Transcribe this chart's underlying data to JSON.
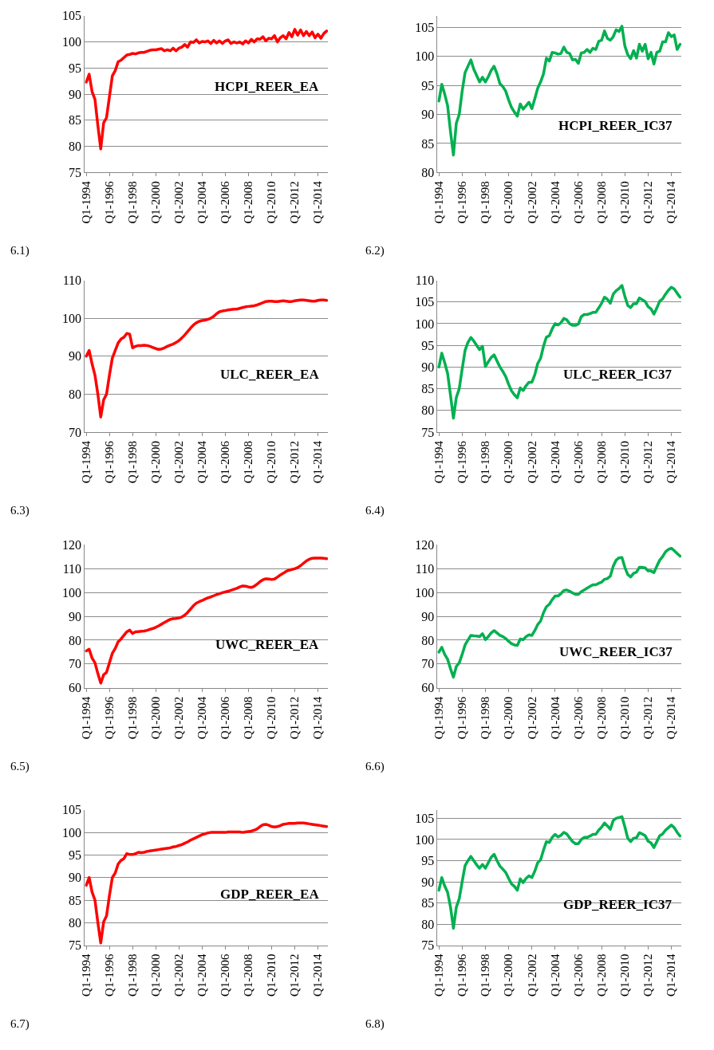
{
  "chart_data": [
    {
      "type": "line",
      "annotations": [
        "6.1)"
      ],
      "ylim": [
        75,
        105
      ],
      "yticks": [
        75,
        80,
        85,
        90,
        95,
        100,
        105
      ],
      "grid": "y",
      "legend": false,
      "marker": "none",
      "line_style": "solid",
      "categories": [
        "Q1-1994",
        null,
        null,
        null,
        null,
        null,
        null,
        null,
        "Q1-1996",
        null,
        null,
        null,
        null,
        null,
        null,
        null,
        "Q1-1998",
        null,
        null,
        null,
        null,
        null,
        null,
        null,
        "Q1-2000",
        null,
        null,
        null,
        null,
        null,
        null,
        null,
        "Q1-2002",
        null,
        null,
        null,
        null,
        null,
        null,
        null,
        "Q1-2004",
        null,
        null,
        null,
        null,
        null,
        null,
        null,
        "Q1-2006",
        null,
        null,
        null,
        null,
        null,
        null,
        null,
        "Q1-2008",
        null,
        null,
        null,
        null,
        null,
        null,
        null,
        "Q1-2010",
        null,
        null,
        null,
        null,
        null,
        null,
        null,
        "Q1-2012",
        null,
        null,
        null,
        null,
        null,
        null,
        null,
        "Q1-2014",
        null,
        null,
        null
      ],
      "series": [
        {
          "name": "HCPI_REER_EA",
          "color": "#ff0000",
          "values": [
            92.3,
            93.8,
            90.5,
            89.0,
            84.0,
            79.5,
            84.5,
            85.5,
            89.5,
            93.5,
            94.5,
            96.2,
            96.5,
            97.0,
            97.5,
            97.6,
            97.8,
            97.7,
            97.9,
            98.0,
            98.0,
            98.2,
            98.4,
            98.5,
            98.5,
            98.6,
            98.7,
            98.3,
            98.5,
            98.3,
            98.8,
            98.3,
            98.8,
            99.0,
            99.5,
            99.0,
            100.0,
            99.9,
            100.4,
            99.8,
            100.1,
            100.0,
            100.2,
            99.7,
            100.3,
            99.8,
            100.2,
            99.7,
            100.2,
            100.4,
            99.7,
            100.0,
            99.8,
            100.0,
            99.6,
            100.2,
            99.8,
            100.5,
            100.0,
            100.6,
            100.5,
            101.0,
            100.2,
            100.7,
            100.6,
            101.2,
            100.0,
            100.8,
            101.2,
            100.6,
            101.8,
            101.0,
            102.4,
            101.3,
            102.3,
            101.2,
            102.0,
            101.2,
            101.9,
            100.8,
            101.5,
            100.7,
            101.6,
            102.1
          ]
        }
      ]
    },
    {
      "type": "line",
      "annotations": [
        "6.2)"
      ],
      "ylim": [
        80,
        107
      ],
      "yticks": [
        80,
        85,
        90,
        95,
        100,
        105
      ],
      "grid": "y",
      "legend": false,
      "marker": "none",
      "line_style": "solid",
      "categories": [
        "Q1-1994",
        null,
        null,
        null,
        null,
        null,
        null,
        null,
        "Q1-1996",
        null,
        null,
        null,
        null,
        null,
        null,
        null,
        "Q1-1998",
        null,
        null,
        null,
        null,
        null,
        null,
        null,
        "Q1-2000",
        null,
        null,
        null,
        null,
        null,
        null,
        null,
        "Q1-2002",
        null,
        null,
        null,
        null,
        null,
        null,
        null,
        "Q1-2004",
        null,
        null,
        null,
        null,
        null,
        null,
        null,
        "Q1-2006",
        null,
        null,
        null,
        null,
        null,
        null,
        null,
        "Q1-2008",
        null,
        null,
        null,
        null,
        null,
        null,
        null,
        "Q1-2010",
        null,
        null,
        null,
        null,
        null,
        null,
        null,
        "Q1-2012",
        null,
        null,
        null,
        null,
        null,
        null,
        null,
        "Q1-2014",
        null,
        null,
        null
      ],
      "series": [
        {
          "name": "HCPI_REER_IC37",
          "color": "#00b050",
          "values": [
            92.3,
            95.2,
            93.5,
            91.5,
            87.0,
            83.0,
            88.5,
            90.0,
            94.0,
            97.2,
            98.3,
            99.4,
            97.8,
            96.7,
            95.6,
            96.4,
            95.6,
            96.5,
            97.6,
            98.3,
            97.0,
            95.3,
            94.8,
            94.0,
            92.5,
            91.2,
            90.4,
            89.7,
            91.8,
            90.9,
            91.5,
            92.1,
            91.0,
            92.7,
            94.5,
            95.6,
            97.0,
            99.7,
            99.2,
            100.7,
            100.6,
            100.4,
            100.5,
            101.6,
            100.7,
            100.5,
            99.4,
            99.5,
            98.8,
            100.6,
            100.7,
            101.2,
            100.7,
            101.4,
            101.2,
            102.6,
            102.8,
            104.4,
            103.1,
            102.8,
            103.4,
            104.6,
            104.3,
            105.2,
            101.8,
            100.3,
            99.6,
            101.0,
            99.7,
            102.1,
            100.9,
            102.1,
            99.6,
            100.7,
            98.7,
            100.7,
            100.9,
            102.5,
            102.5,
            104.1,
            103.4,
            103.7,
            101.2,
            102.1
          ]
        }
      ]
    },
    {
      "type": "line",
      "annotations": [
        "6.3)"
      ],
      "ylim": [
        70,
        110
      ],
      "yticks": [
        70,
        80,
        90,
        100,
        110
      ],
      "grid": "y",
      "legend": false,
      "marker": "none",
      "line_style": "solid",
      "categories": [
        "Q1-1994",
        null,
        null,
        null,
        null,
        null,
        null,
        null,
        "Q1-1996",
        null,
        null,
        null,
        null,
        null,
        null,
        null,
        "Q1-1998",
        null,
        null,
        null,
        null,
        null,
        null,
        null,
        "Q1-2000",
        null,
        null,
        null,
        null,
        null,
        null,
        null,
        "Q1-2002",
        null,
        null,
        null,
        null,
        null,
        null,
        null,
        "Q1-2004",
        null,
        null,
        null,
        null,
        null,
        null,
        null,
        "Q1-2006",
        null,
        null,
        null,
        null,
        null,
        null,
        null,
        "Q1-2008",
        null,
        null,
        null,
        null,
        null,
        null,
        null,
        "Q1-2010",
        null,
        null,
        null,
        null,
        null,
        null,
        null,
        "Q1-2012",
        null,
        null,
        null,
        null,
        null,
        null,
        null,
        "Q1-2014",
        null,
        null,
        null
      ],
      "series": [
        {
          "name": "ULC_REER_EA",
          "color": "#ff0000",
          "values": [
            90.0,
            91.5,
            88.0,
            85.0,
            80.0,
            74.0,
            78.5,
            80.0,
            85.0,
            89.5,
            91.5,
            93.5,
            94.5,
            95.0,
            96.0,
            95.8,
            92.2,
            92.6,
            92.8,
            92.8,
            92.9,
            92.8,
            92.6,
            92.3,
            92.0,
            91.8,
            91.9,
            92.2,
            92.6,
            92.9,
            93.2,
            93.6,
            94.1,
            94.8,
            95.6,
            96.5,
            97.4,
            98.2,
            98.8,
            99.2,
            99.4,
            99.5,
            99.7,
            100.0,
            100.5,
            101.2,
            101.7,
            101.9,
            102.0,
            102.2,
            102.3,
            102.4,
            102.4,
            102.6,
            102.8,
            103.0,
            103.1,
            103.2,
            103.3,
            103.5,
            103.8,
            104.1,
            104.4,
            104.5,
            104.5,
            104.4,
            104.4,
            104.5,
            104.6,
            104.5,
            104.4,
            104.4,
            104.6,
            104.7,
            104.8,
            104.8,
            104.7,
            104.6,
            104.5,
            104.5,
            104.7,
            104.8,
            104.8,
            104.7
          ]
        }
      ]
    },
    {
      "type": "line",
      "annotations": [
        "6.4)"
      ],
      "ylim": [
        75,
        110
      ],
      "yticks": [
        75,
        80,
        85,
        90,
        95,
        100,
        105,
        110
      ],
      "grid": "y",
      "legend": false,
      "marker": "none",
      "line_style": "solid",
      "categories": [
        "Q1-1994",
        null,
        null,
        null,
        null,
        null,
        null,
        null,
        "Q1-1996",
        null,
        null,
        null,
        null,
        null,
        null,
        null,
        "Q1-1998",
        null,
        null,
        null,
        null,
        null,
        null,
        null,
        "Q1-2000",
        null,
        null,
        null,
        null,
        null,
        null,
        null,
        "Q1-2002",
        null,
        null,
        null,
        null,
        null,
        null,
        null,
        "Q1-2004",
        null,
        null,
        null,
        null,
        null,
        null,
        null,
        "Q1-2006",
        null,
        null,
        null,
        null,
        null,
        null,
        null,
        "Q1-2008",
        null,
        null,
        null,
        null,
        null,
        null,
        null,
        "Q1-2010",
        null,
        null,
        null,
        null,
        null,
        null,
        null,
        "Q1-2012",
        null,
        null,
        null,
        null,
        null,
        null,
        null,
        "Q1-2014",
        null,
        null,
        null
      ],
      "series": [
        {
          "name": "ULC_REER_IC37",
          "color": "#00b050",
          "values": [
            90.0,
            93.2,
            91.0,
            88.5,
            83.5,
            78.2,
            83.0,
            85.0,
            89.5,
            93.8,
            95.7,
            96.8,
            96.0,
            95.0,
            94.0,
            94.8,
            90.1,
            91.2,
            92.2,
            92.8,
            91.4,
            90.0,
            89.0,
            87.8,
            86.0,
            84.5,
            83.6,
            82.9,
            85.2,
            84.6,
            85.7,
            86.5,
            86.5,
            88.2,
            90.8,
            92.0,
            94.8,
            96.9,
            97.2,
            98.8,
            100.0,
            99.7,
            100.2,
            101.2,
            100.9,
            100.0,
            99.6,
            99.6,
            99.9,
            101.6,
            102.1,
            102.1,
            102.3,
            102.6,
            102.6,
            103.6,
            104.7,
            106.1,
            105.6,
            104.7,
            106.8,
            107.6,
            108.1,
            108.8,
            106.3,
            104.2,
            103.7,
            104.6,
            104.6,
            105.9,
            105.5,
            105.1,
            103.9,
            103.4,
            102.2,
            103.6,
            105.2,
            105.7,
            106.8,
            107.7,
            108.4,
            108.0,
            107.0,
            106.1
          ]
        }
      ]
    },
    {
      "type": "line",
      "annotations": [
        "6.5)"
      ],
      "ylim": [
        60,
        120
      ],
      "yticks": [
        60,
        70,
        80,
        90,
        100,
        110,
        120
      ],
      "grid": "y",
      "legend": false,
      "marker": "none",
      "line_style": "solid",
      "categories": [
        "Q1-1994",
        null,
        null,
        null,
        null,
        null,
        null,
        null,
        "Q1-1996",
        null,
        null,
        null,
        null,
        null,
        null,
        null,
        "Q1-1998",
        null,
        null,
        null,
        null,
        null,
        null,
        null,
        "Q1-2000",
        null,
        null,
        null,
        null,
        null,
        null,
        null,
        "Q1-2002",
        null,
        null,
        null,
        null,
        null,
        null,
        null,
        "Q1-2004",
        null,
        null,
        null,
        null,
        null,
        null,
        null,
        "Q1-2006",
        null,
        null,
        null,
        null,
        null,
        null,
        null,
        "Q1-2008",
        null,
        null,
        null,
        null,
        null,
        null,
        null,
        "Q1-2010",
        null,
        null,
        null,
        null,
        null,
        null,
        null,
        "Q1-2012",
        null,
        null,
        null,
        null,
        null,
        null,
        null,
        "Q1-2014",
        null,
        null,
        null
      ],
      "series": [
        {
          "name": "UWC_REER_EA",
          "color": "#ff0000",
          "values": [
            75.5,
            76.2,
            72.5,
            70.5,
            66.0,
            62.0,
            65.5,
            66.5,
            70.5,
            74.5,
            76.5,
            79.3,
            80.5,
            82.0,
            83.5,
            84.2,
            82.8,
            83.5,
            83.6,
            83.7,
            83.8,
            84.1,
            84.5,
            84.9,
            85.4,
            86.0,
            86.7,
            87.4,
            88.1,
            88.7,
            89.0,
            89.1,
            89.3,
            89.7,
            90.5,
            91.6,
            93.0,
            94.4,
            95.5,
            96.1,
            96.6,
            97.2,
            97.7,
            98.1,
            98.6,
            99.1,
            99.5,
            99.9,
            100.2,
            100.5,
            100.9,
            101.3,
            101.7,
            102.3,
            102.7,
            102.6,
            102.3,
            102.1,
            102.6,
            103.5,
            104.5,
            105.3,
            105.7,
            105.6,
            105.4,
            105.6,
            106.4,
            107.3,
            108.0,
            108.8,
            109.3,
            109.6,
            109.9,
            110.4,
            111.2,
            112.2,
            113.2,
            113.9,
            114.3,
            114.4,
            114.4,
            114.4,
            114.3,
            114.1
          ]
        }
      ]
    },
    {
      "type": "line",
      "annotations": [
        "6.6)"
      ],
      "ylim": [
        60,
        120
      ],
      "yticks": [
        60,
        70,
        80,
        90,
        100,
        110,
        120
      ],
      "grid": "y",
      "legend": false,
      "marker": "none",
      "line_style": "solid",
      "categories": [
        "Q1-1994",
        null,
        null,
        null,
        null,
        null,
        null,
        null,
        "Q1-1996",
        null,
        null,
        null,
        null,
        null,
        null,
        null,
        "Q1-1998",
        null,
        null,
        null,
        null,
        null,
        null,
        null,
        "Q1-2000",
        null,
        null,
        null,
        null,
        null,
        null,
        null,
        "Q1-2002",
        null,
        null,
        null,
        null,
        null,
        null,
        null,
        "Q1-2004",
        null,
        null,
        null,
        null,
        null,
        null,
        null,
        "Q1-2006",
        null,
        null,
        null,
        null,
        null,
        null,
        null,
        "Q1-2008",
        null,
        null,
        null,
        null,
        null,
        null,
        null,
        "Q1-2010",
        null,
        null,
        null,
        null,
        null,
        null,
        null,
        "Q1-2012",
        null,
        null,
        null,
        null,
        null,
        null,
        null,
        "Q1-2014",
        null,
        null,
        null
      ],
      "series": [
        {
          "name": "UWC_REER_IC37",
          "color": "#00b050",
          "values": [
            75.0,
            77.0,
            74.0,
            72.0,
            68.0,
            64.5,
            69.0,
            70.5,
            74.0,
            78.0,
            80.0,
            82.0,
            81.8,
            81.7,
            81.5,
            82.7,
            80.2,
            81.5,
            83.0,
            84.0,
            83.0,
            82.0,
            81.5,
            80.7,
            79.5,
            78.5,
            78.0,
            77.8,
            80.5,
            80.2,
            81.5,
            82.2,
            82.0,
            84.0,
            86.5,
            88.0,
            91.5,
            94.0,
            95.0,
            97.0,
            98.5,
            98.5,
            99.5,
            100.8,
            101.0,
            100.5,
            99.8,
            99.2,
            99.2,
            100.3,
            101.0,
            101.8,
            102.5,
            103.2,
            103.2,
            103.8,
            104.3,
            105.5,
            105.8,
            106.8,
            111.0,
            113.5,
            114.5,
            114.6,
            110.5,
            107.5,
            106.5,
            108.0,
            108.5,
            110.5,
            110.5,
            110.3,
            109.0,
            109.0,
            108.3,
            111.0,
            113.5,
            115.0,
            117.0,
            118.0,
            118.5,
            117.5,
            116.3,
            115.2
          ]
        }
      ]
    },
    {
      "type": "line",
      "annotations": [
        "6.7)"
      ],
      "ylim": [
        75,
        105
      ],
      "yticks": [
        75,
        80,
        85,
        90,
        95,
        100,
        105
      ],
      "grid": "y",
      "legend": false,
      "marker": "none",
      "line_style": "solid",
      "categories": [
        "Q1-1994",
        null,
        null,
        null,
        null,
        null,
        null,
        null,
        "Q1-1996",
        null,
        null,
        null,
        null,
        null,
        null,
        null,
        "Q1-1998",
        null,
        null,
        null,
        null,
        null,
        null,
        null,
        "Q1-2000",
        null,
        null,
        null,
        null,
        null,
        null,
        null,
        "Q1-2002",
        null,
        null,
        null,
        null,
        null,
        null,
        null,
        "Q1-2004",
        null,
        null,
        null,
        null,
        null,
        null,
        null,
        "Q1-2006",
        null,
        null,
        null,
        null,
        null,
        null,
        null,
        "Q1-2008",
        null,
        null,
        null,
        null,
        null,
        null,
        null,
        "Q1-2010",
        null,
        null,
        null,
        null,
        null,
        null,
        null,
        "Q1-2012",
        null,
        null,
        null,
        null,
        null,
        null,
        null,
        "Q1-2014",
        null,
        null,
        null
      ],
      "series": [
        {
          "name": "GDP_REER_EA",
          "color": "#ff0000",
          "values": [
            88.3,
            90.0,
            86.8,
            85.0,
            80.0,
            75.5,
            80.2,
            81.5,
            86.0,
            90.0,
            91.0,
            93.0,
            93.8,
            94.2,
            95.3,
            95.1,
            95.1,
            95.3,
            95.6,
            95.5,
            95.6,
            95.8,
            95.9,
            96.0,
            96.1,
            96.2,
            96.3,
            96.4,
            96.5,
            96.6,
            96.8,
            96.9,
            97.1,
            97.3,
            97.6,
            97.9,
            98.3,
            98.6,
            98.9,
            99.2,
            99.5,
            99.7,
            99.9,
            100.0,
            100.0,
            100.0,
            100.0,
            100.0,
            100.0,
            100.1,
            100.1,
            100.1,
            100.1,
            100.1,
            100.0,
            100.1,
            100.2,
            100.3,
            100.5,
            100.8,
            101.3,
            101.7,
            101.8,
            101.6,
            101.3,
            101.2,
            101.3,
            101.5,
            101.8,
            101.9,
            102.0,
            102.0,
            102.0,
            102.1,
            102.1,
            102.1,
            102.0,
            101.9,
            101.8,
            101.7,
            101.6,
            101.5,
            101.4,
            101.3
          ]
        }
      ]
    },
    {
      "type": "line",
      "annotations": [
        "6.8)"
      ],
      "ylim": [
        75,
        107
      ],
      "yticks": [
        75,
        80,
        85,
        90,
        95,
        100,
        105
      ],
      "grid": "y",
      "legend": false,
      "marker": "none",
      "line_style": "solid",
      "categories": [
        "Q1-1994",
        null,
        null,
        null,
        null,
        null,
        null,
        null,
        "Q1-1996",
        null,
        null,
        null,
        null,
        null,
        null,
        null,
        "Q1-1998",
        null,
        null,
        null,
        null,
        null,
        null,
        null,
        "Q1-2000",
        null,
        null,
        null,
        null,
        null,
        null,
        null,
        "Q1-2002",
        null,
        null,
        null,
        null,
        null,
        null,
        null,
        "Q1-2004",
        null,
        null,
        null,
        null,
        null,
        null,
        null,
        "Q1-2006",
        null,
        null,
        null,
        null,
        null,
        null,
        null,
        "Q1-2008",
        null,
        null,
        null,
        null,
        null,
        null,
        null,
        "Q1-2010",
        null,
        null,
        null,
        null,
        null,
        null,
        null,
        "Q1-2012",
        null,
        null,
        null,
        null,
        null,
        null,
        null,
        "Q1-2014",
        null,
        null,
        null
      ],
      "series": [
        {
          "name": "GDP_REER_IC37",
          "color": "#00b050",
          "values": [
            88.0,
            91.0,
            89.0,
            87.5,
            84.0,
            79.0,
            84.0,
            86.0,
            90.0,
            93.8,
            95.0,
            96.0,
            95.0,
            94.0,
            93.2,
            94.1,
            93.2,
            94.5,
            95.8,
            96.5,
            95.0,
            93.7,
            93.0,
            92.2,
            90.8,
            89.5,
            88.9,
            88.0,
            90.7,
            89.8,
            90.8,
            91.4,
            91.0,
            92.5,
            94.5,
            95.2,
            97.5,
            99.5,
            99.3,
            100.5,
            101.2,
            100.6,
            101.0,
            101.7,
            101.3,
            100.4,
            99.5,
            99.0,
            99.0,
            100.0,
            100.5,
            100.5,
            100.8,
            101.2,
            101.2,
            102.2,
            102.9,
            103.9,
            103.2,
            102.4,
            104.5,
            105.0,
            105.2,
            105.4,
            103.0,
            100.3,
            99.5,
            100.3,
            100.4,
            101.6,
            101.3,
            100.9,
            99.6,
            99.2,
            98.1,
            99.5,
            100.9,
            101.3,
            102.2,
            102.8,
            103.4,
            102.8,
            101.7,
            100.8
          ]
        }
      ]
    }
  ]
}
